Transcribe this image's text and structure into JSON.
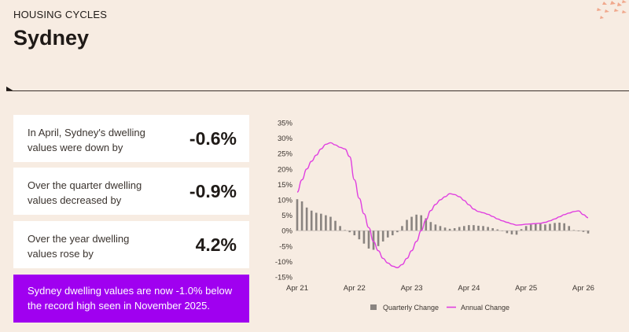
{
  "header": {
    "eyebrow": "HOUSING CYCLES",
    "title": "Sydney"
  },
  "cards": [
    {
      "label": "In April, Sydney's dwelling values were down by",
      "value": "-0.6%"
    },
    {
      "label": "Over the quarter dwelling values decreased by",
      "value": "-0.9%"
    },
    {
      "label": "Over the year dwelling values rose by",
      "value": "4.2%"
    }
  ],
  "banner": {
    "text": "Sydney dwelling values are now -1.0% below the record high seen in November 2025."
  },
  "colors": {
    "accent": "#a000f0",
    "line": "#e040e0",
    "bar": "#8a8480",
    "background": "#f7ece2"
  },
  "chart_data": {
    "type": "bar",
    "y_ticks": [
      "35%",
      "30%",
      "25%",
      "20%",
      "15%",
      "10%",
      "5%",
      "0%",
      "-5%",
      "-10%",
      "-15%"
    ],
    "x_ticks": [
      {
        "label": "Apr 21",
        "x": 0
      },
      {
        "label": "Apr 22",
        "x": 12
      },
      {
        "label": "Apr 23",
        "x": 24
      },
      {
        "label": "Apr 24",
        "x": 36
      },
      {
        "label": "Apr 25",
        "x": 48
      },
      {
        "label": "Apr 26",
        "x": 60
      }
    ],
    "ylim": [
      -15,
      35
    ],
    "grid": false,
    "legend_position": "bottom",
    "series": [
      {
        "name": "Quarterly Change",
        "type": "bar",
        "values": [
          10.2,
          9.5,
          7.5,
          6.5,
          5.8,
          5.5,
          5.0,
          4.5,
          3.2,
          1.5,
          0.2,
          -0.5,
          -1.5,
          -2.8,
          -4.2,
          -5.8,
          -6.2,
          -5.0,
          -3.5,
          -2.2,
          -1.5,
          -0.5,
          1.5,
          3.5,
          4.5,
          5.2,
          5.0,
          4.0,
          2.8,
          2.0,
          1.5,
          1.0,
          0.6,
          0.8,
          1.2,
          1.5,
          1.8,
          1.8,
          1.6,
          1.5,
          1.2,
          0.8,
          0.4,
          0.0,
          -0.8,
          -1.2,
          -1.3,
          0.5,
          1.5,
          2.0,
          2.2,
          2.2,
          2.0,
          2.2,
          2.5,
          2.6,
          2.4,
          1.5,
          0.2,
          -0.2,
          -0.4,
          -0.9
        ]
      },
      {
        "name": "Annual Change",
        "type": "line",
        "values": [
          12.5,
          16.5,
          20.0,
          22.5,
          24.5,
          26.5,
          28.0,
          28.5,
          27.8,
          27.0,
          26.5,
          24.0,
          16.5,
          10.5,
          5.5,
          1.0,
          -3.5,
          -6.5,
          -9.0,
          -10.5,
          -11.5,
          -12.0,
          -11.0,
          -9.0,
          -6.5,
          -3.5,
          0.0,
          3.5,
          6.5,
          8.5,
          10.0,
          11.0,
          12.0,
          11.7,
          11.0,
          9.8,
          8.4,
          7.0,
          6.2,
          5.8,
          5.3,
          4.6,
          3.8,
          3.2,
          2.7,
          2.2,
          1.8,
          1.9,
          2.1,
          2.2,
          2.3,
          2.4,
          2.7,
          3.2,
          3.8,
          4.5,
          5.2,
          5.7,
          6.2,
          6.4,
          5.2,
          4.2
        ]
      }
    ]
  }
}
